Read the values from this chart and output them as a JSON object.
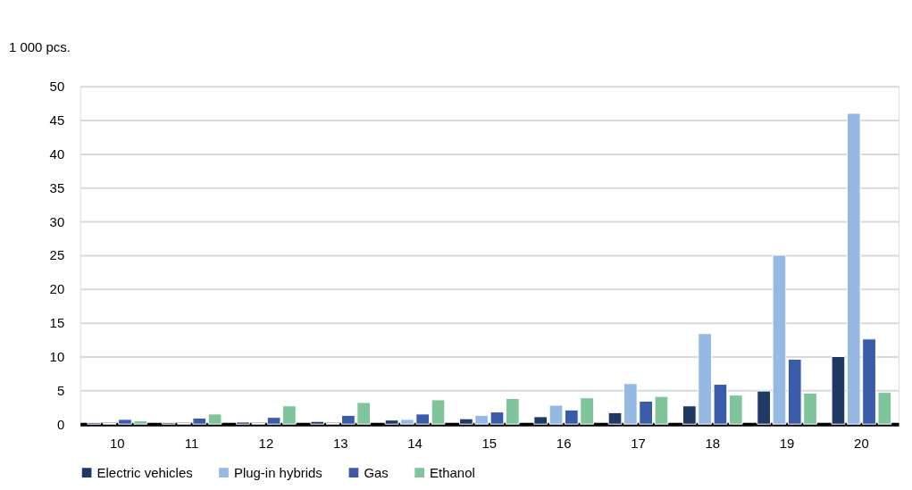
{
  "chart_data": {
    "type": "bar",
    "ylabel": "1 000 pcs.",
    "categories": [
      "10",
      "11",
      "12",
      "13",
      "14",
      "15",
      "16",
      "17",
      "18",
      "19",
      "20"
    ],
    "series": [
      {
        "name": "Electric vehicles",
        "color": "#203864",
        "values": [
          0.2,
          0.2,
          0.3,
          0.4,
          0.6,
          0.8,
          1.1,
          1.7,
          2.7,
          4.9,
          10.0
        ]
      },
      {
        "name": "Plug-in hybrids",
        "color": "#95b9e2",
        "values": [
          0.1,
          0.1,
          0.1,
          0.1,
          0.7,
          1.3,
          2.8,
          6.0,
          13.4,
          25.0,
          46.0
        ]
      },
      {
        "name": "Gas",
        "color": "#3a5ba8",
        "values": [
          0.7,
          0.9,
          1.0,
          1.3,
          1.5,
          1.8,
          2.1,
          3.4,
          5.9,
          9.6,
          12.6
        ]
      },
      {
        "name": "Ethanol",
        "color": "#7fc49a",
        "values": [
          0.5,
          1.5,
          2.7,
          3.2,
          3.6,
          3.8,
          3.9,
          4.1,
          4.3,
          4.6,
          4.7
        ]
      }
    ],
    "ylim": [
      0,
      50
    ],
    "yticks": [
      0,
      5,
      10,
      15,
      20,
      25,
      30,
      35,
      40,
      45,
      50
    ],
    "grid": "y",
    "legend": "bottom"
  }
}
